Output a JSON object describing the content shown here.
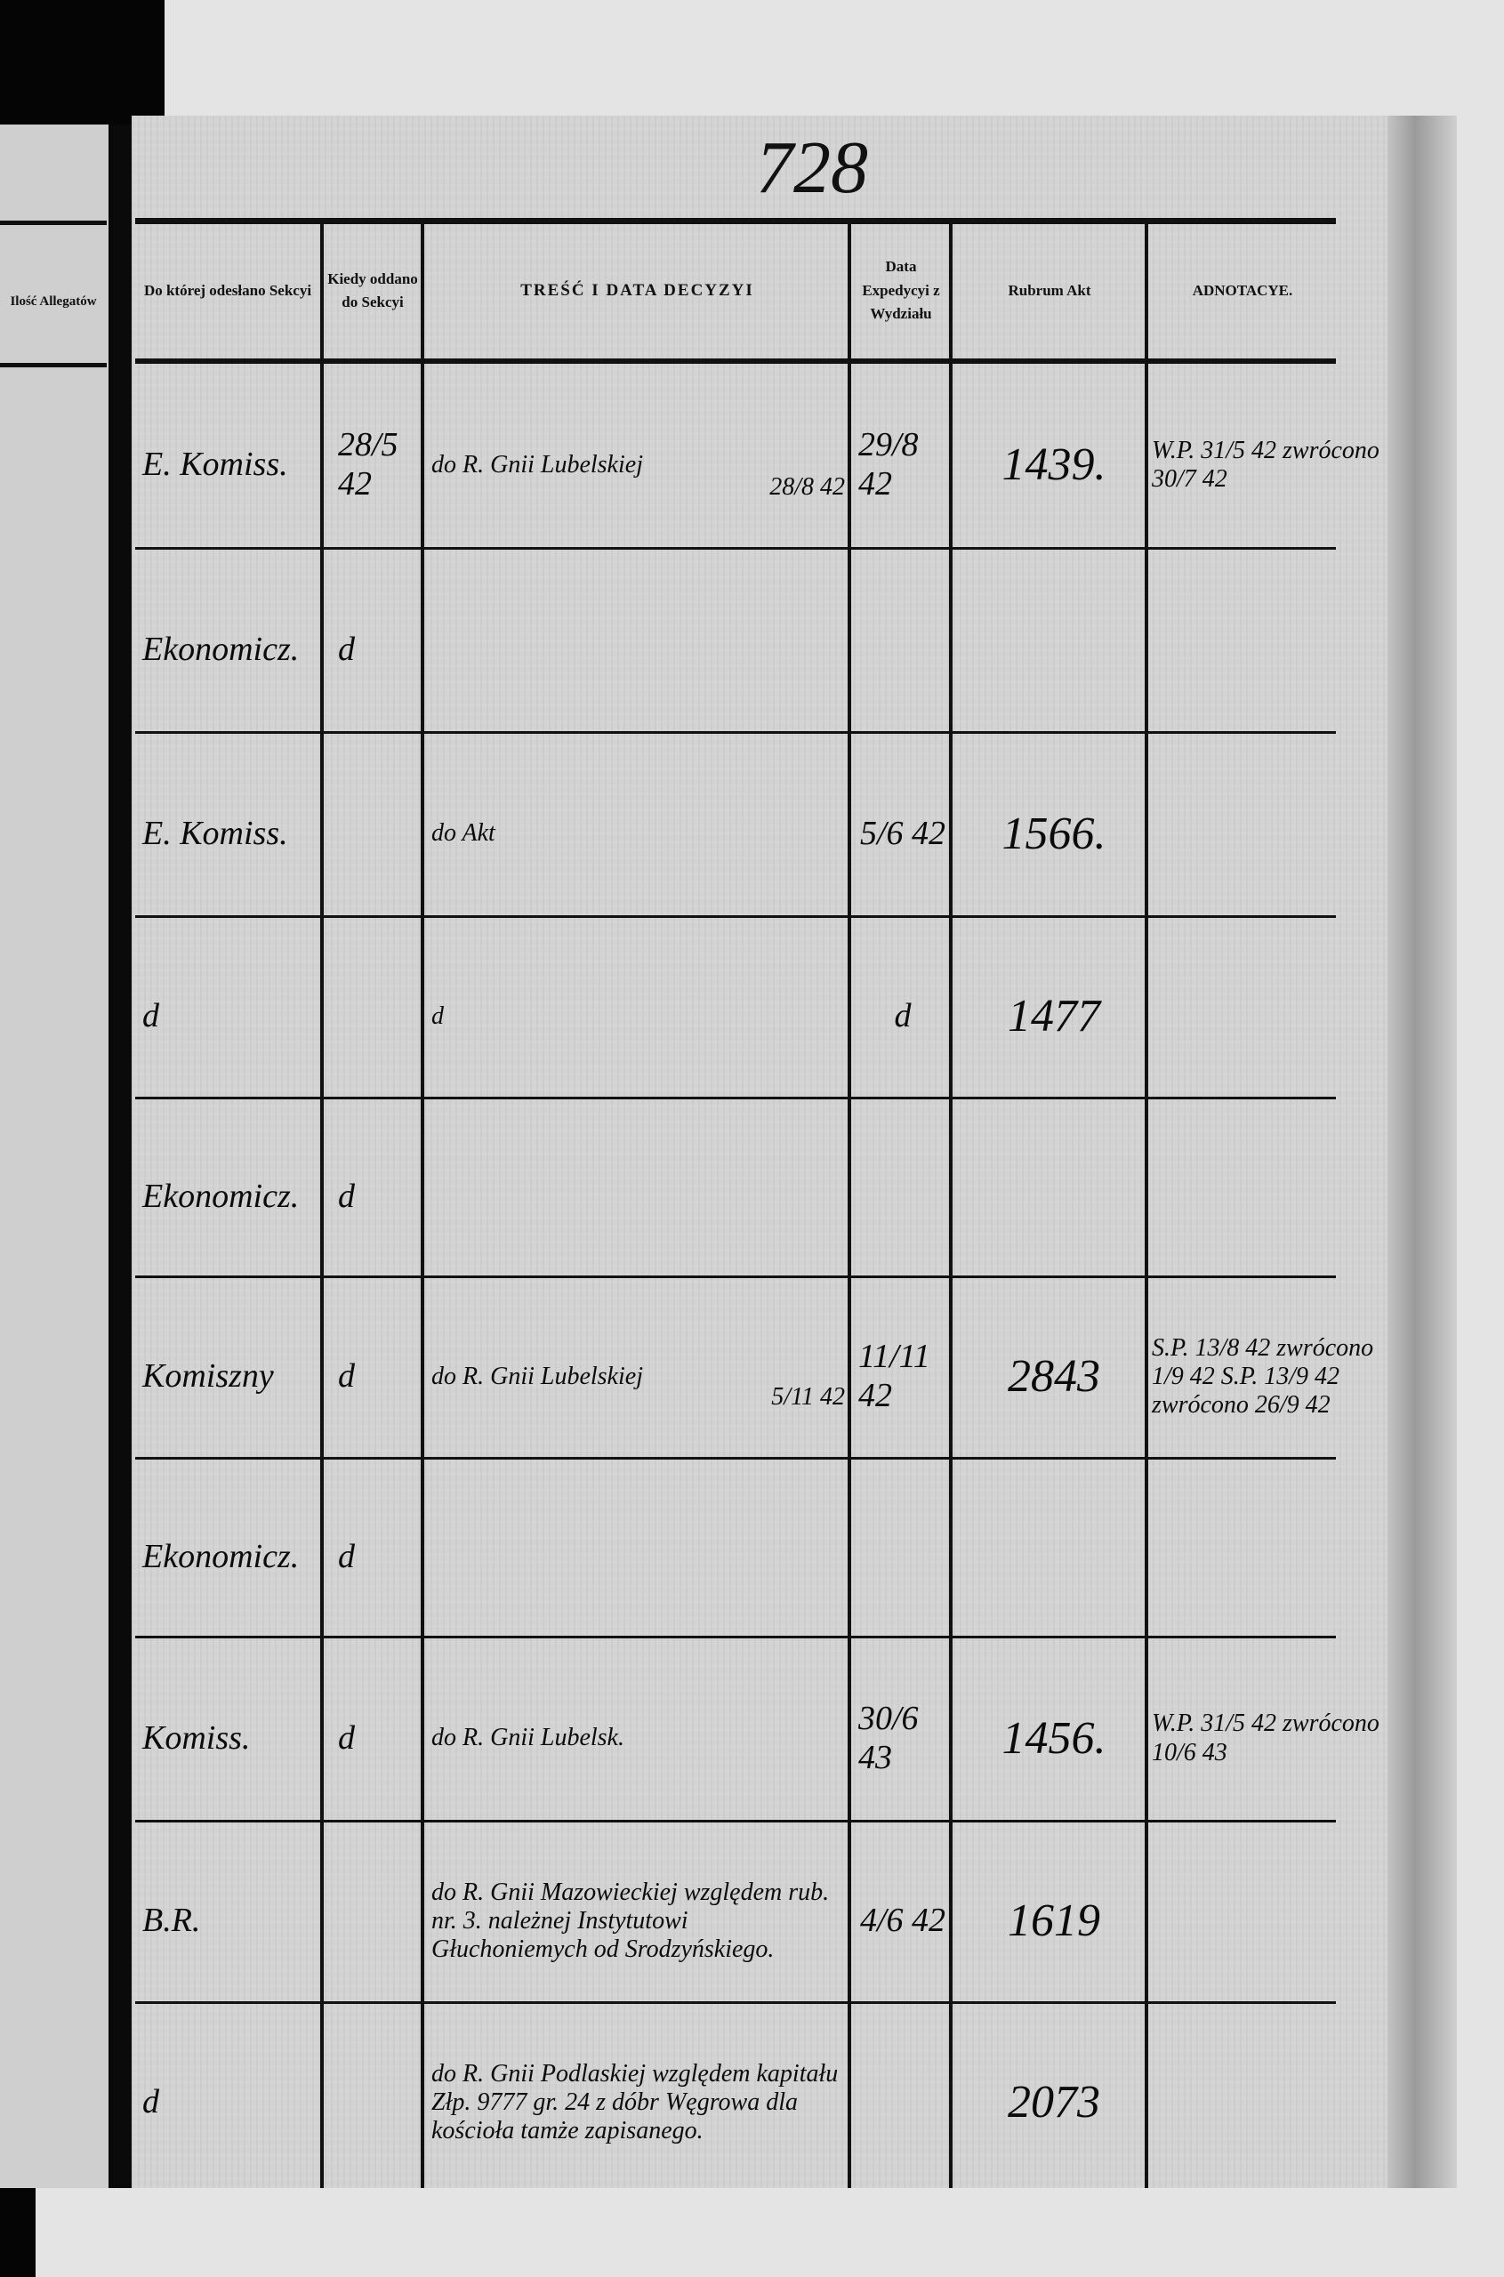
{
  "page_number": "728",
  "left_page": {
    "header": "Ilość Allegatów"
  },
  "headers": {
    "department": "Do której odesłano Sekcyi",
    "when_given": "Kiedy oddano do Sekcyi",
    "content": "TREŚĆ I DATA DECYZYI",
    "dispatch_date": "Data Expedycyi z Wydziału",
    "rubrum": "Rubrum Akt",
    "annotations": "ADNOTACYE."
  },
  "rows": [
    {
      "department": "E. Komiss.",
      "when": "28/5 42",
      "content": "do R. Gnii Lubelskiej",
      "content_date": "28/8 42",
      "dispatch": "29/8 42",
      "rubrum": "1439.",
      "notes": "W.P. 31/5 42 zwrócono 30/7 42"
    },
    {
      "department": "Ekonomicz.",
      "when": "d",
      "content": "",
      "content_date": "",
      "dispatch": "",
      "rubrum": "",
      "notes": ""
    },
    {
      "department": "E. Komiss.",
      "when": "",
      "content": "do Akt",
      "content_date": "",
      "dispatch": "5/6 42",
      "rubrum": "1566.",
      "notes": ""
    },
    {
      "department": "d",
      "when": "",
      "content": "d",
      "content_date": "",
      "dispatch": "d",
      "rubrum": "1477",
      "notes": ""
    },
    {
      "department": "Ekonomicz.",
      "when": "d",
      "content": "",
      "content_date": "",
      "dispatch": "",
      "rubrum": "",
      "notes": ""
    },
    {
      "department": "Komiszny",
      "when": "d",
      "content": "do R. Gnii Lubelskiej",
      "content_date": "5/11 42",
      "dispatch": "11/11 42",
      "rubrum": "2843",
      "notes": "S.P. 13/8 42 zwrócono 1/9 42 S.P. 13/9 42 zwrócono 26/9 42"
    },
    {
      "department": "Ekonomicz.",
      "when": "d",
      "content": "",
      "content_date": "",
      "dispatch": "",
      "rubrum": "",
      "notes": ""
    },
    {
      "department": "Komiss.",
      "when": "d",
      "content": "do R. Gnii Lubelsk.",
      "content_date": "",
      "dispatch": "30/6 43",
      "rubrum": "1456.",
      "notes": "W.P. 31/5 42 zwrócono 10/6 43"
    },
    {
      "department": "B.R.",
      "when": "",
      "content": "do R. Gnii Mazowieckiej względem rub. nr. 3. należnej Instytutowi Głuchoniemych od Srodzyńskiego.",
      "content_date": "",
      "dispatch": "4/6 42",
      "rubrum": "1619",
      "notes": ""
    },
    {
      "department": "d",
      "when": "",
      "content": "do R. Gnii Podlaskiej względem kapitału Złp. 9777 gr. 24 z dóbr Węgrowa dla kościoła tamże zapisanego.",
      "content_date": "",
      "dispatch": "",
      "rubrum": "2073",
      "notes": ""
    }
  ]
}
